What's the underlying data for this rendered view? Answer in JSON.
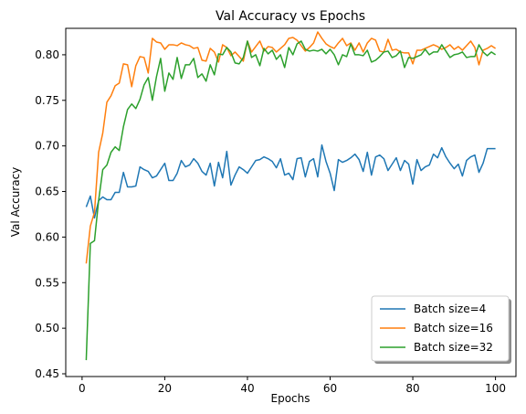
{
  "chart_data": {
    "type": "line",
    "title": "Val Accuracy vs Epochs",
    "xlabel": "Epochs",
    "ylabel": "Val Accuracy",
    "xlim": [
      -3.95,
      104.95
    ],
    "ylim": [
      0.447,
      0.829
    ],
    "xticks": [
      0,
      20,
      40,
      60,
      80,
      100
    ],
    "xtick_labels": [
      "0",
      "20",
      "40",
      "60",
      "80",
      "100"
    ],
    "yticks": [
      0.45,
      0.5,
      0.55,
      0.6,
      0.65,
      0.7,
      0.75,
      0.8
    ],
    "ytick_labels": [
      "0.45",
      "0.50",
      "0.55",
      "0.60",
      "0.65",
      "0.70",
      "0.75",
      "0.80"
    ],
    "grid": false,
    "legend_position": "lower right",
    "x": [
      1,
      2,
      3,
      4,
      5,
      6,
      7,
      8,
      9,
      10,
      11,
      12,
      13,
      14,
      15,
      16,
      17,
      18,
      19,
      20,
      21,
      22,
      23,
      24,
      25,
      26,
      27,
      28,
      29,
      30,
      31,
      32,
      33,
      34,
      35,
      36,
      37,
      38,
      39,
      40,
      41,
      42,
      43,
      44,
      45,
      46,
      47,
      48,
      49,
      50,
      51,
      52,
      53,
      54,
      55,
      56,
      57,
      58,
      59,
      60,
      61,
      62,
      63,
      64,
      65,
      66,
      67,
      68,
      69,
      70,
      71,
      72,
      73,
      74,
      75,
      76,
      77,
      78,
      79,
      80,
      81,
      82,
      83,
      84,
      85,
      86,
      87,
      88,
      89,
      90,
      91,
      92,
      93,
      94,
      95,
      96,
      97,
      98,
      99,
      100
    ],
    "series": [
      {
        "name": "Batch size=4",
        "color": "#1f77b4",
        "values": [
          0.633,
          0.645,
          0.621,
          0.64,
          0.644,
          0.641,
          0.641,
          0.649,
          0.649,
          0.671,
          0.655,
          0.655,
          0.656,
          0.677,
          0.674,
          0.672,
          0.665,
          0.667,
          0.674,
          0.681,
          0.662,
          0.662,
          0.67,
          0.684,
          0.677,
          0.679,
          0.686,
          0.681,
          0.672,
          0.668,
          0.681,
          0.656,
          0.682,
          0.665,
          0.694,
          0.657,
          0.668,
          0.677,
          0.674,
          0.67,
          0.677,
          0.684,
          0.685,
          0.688,
          0.686,
          0.683,
          0.676,
          0.686,
          0.668,
          0.67,
          0.663,
          0.686,
          0.687,
          0.666,
          0.683,
          0.686,
          0.666,
          0.701,
          0.683,
          0.67,
          0.651,
          0.685,
          0.682,
          0.684,
          0.687,
          0.691,
          0.685,
          0.672,
          0.693,
          0.668,
          0.688,
          0.69,
          0.686,
          0.673,
          0.68,
          0.687,
          0.673,
          0.684,
          0.68,
          0.658,
          0.685,
          0.673,
          0.677,
          0.679,
          0.691,
          0.687,
          0.698,
          0.688,
          0.681,
          0.675,
          0.68,
          0.667,
          0.684,
          0.688,
          0.69,
          0.671,
          0.681,
          0.697,
          0.697,
          0.697
        ]
      },
      {
        "name": "Batch size=16",
        "color": "#ff7f0e",
        "values": [
          0.571,
          0.612,
          0.627,
          0.693,
          0.714,
          0.748,
          0.755,
          0.766,
          0.769,
          0.79,
          0.789,
          0.765,
          0.788,
          0.798,
          0.797,
          0.78,
          0.818,
          0.814,
          0.813,
          0.806,
          0.811,
          0.811,
          0.81,
          0.813,
          0.811,
          0.81,
          0.807,
          0.808,
          0.794,
          0.793,
          0.807,
          0.803,
          0.792,
          0.811,
          0.808,
          0.799,
          0.803,
          0.798,
          0.793,
          0.815,
          0.803,
          0.809,
          0.815,
          0.804,
          0.809,
          0.808,
          0.803,
          0.807,
          0.811,
          0.818,
          0.819,
          0.816,
          0.81,
          0.804,
          0.808,
          0.813,
          0.825,
          0.818,
          0.812,
          0.809,
          0.807,
          0.813,
          0.818,
          0.81,
          0.813,
          0.805,
          0.813,
          0.803,
          0.813,
          0.818,
          0.816,
          0.804,
          0.803,
          0.817,
          0.805,
          0.806,
          0.803,
          0.802,
          0.802,
          0.79,
          0.805,
          0.805,
          0.807,
          0.809,
          0.811,
          0.809,
          0.806,
          0.808,
          0.811,
          0.806,
          0.809,
          0.805,
          0.81,
          0.815,
          0.808,
          0.789,
          0.805,
          0.807,
          0.81,
          0.807
        ]
      },
      {
        "name": "Batch size=32",
        "color": "#2ca02c",
        "values": [
          0.465,
          0.593,
          0.596,
          0.64,
          0.674,
          0.679,
          0.693,
          0.699,
          0.695,
          0.721,
          0.74,
          0.746,
          0.741,
          0.751,
          0.767,
          0.775,
          0.75,
          0.776,
          0.796,
          0.76,
          0.78,
          0.773,
          0.797,
          0.774,
          0.789,
          0.789,
          0.796,
          0.775,
          0.779,
          0.771,
          0.789,
          0.778,
          0.801,
          0.8,
          0.808,
          0.803,
          0.791,
          0.79,
          0.797,
          0.815,
          0.797,
          0.8,
          0.788,
          0.807,
          0.801,
          0.805,
          0.795,
          0.8,
          0.786,
          0.808,
          0.8,
          0.812,
          0.815,
          0.806,
          0.804,
          0.805,
          0.804,
          0.806,
          0.801,
          0.806,
          0.8,
          0.789,
          0.8,
          0.798,
          0.812,
          0.8,
          0.8,
          0.799,
          0.805,
          0.792,
          0.794,
          0.798,
          0.803,
          0.804,
          0.797,
          0.799,
          0.804,
          0.786,
          0.797,
          0.796,
          0.798,
          0.8,
          0.806,
          0.8,
          0.803,
          0.803,
          0.811,
          0.804,
          0.797,
          0.8,
          0.801,
          0.803,
          0.797,
          0.798,
          0.798,
          0.811,
          0.803,
          0.799,
          0.803,
          0.8
        ]
      }
    ]
  }
}
